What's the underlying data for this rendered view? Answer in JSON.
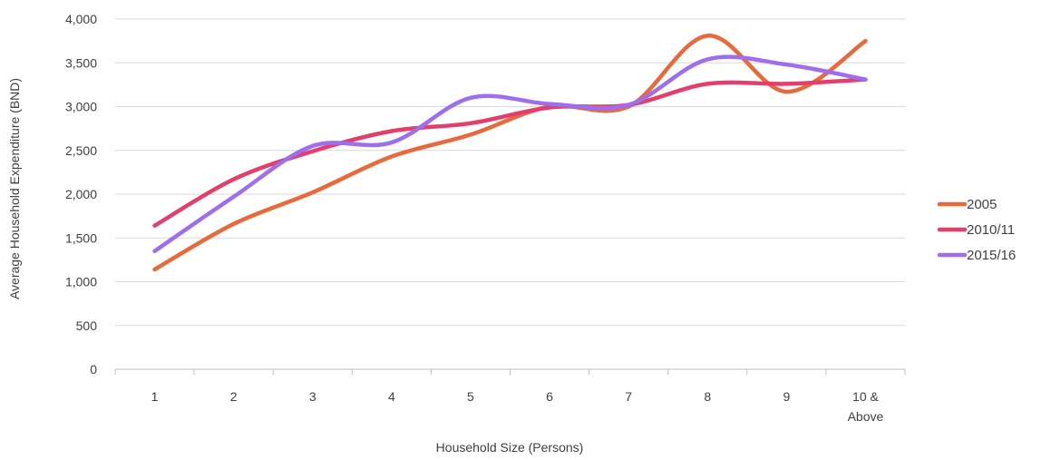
{
  "chart_data": {
    "type": "line",
    "title": "",
    "xlabel": "Household Size (Persons)",
    "ylabel": "Average Household Expenditure (BND)",
    "categories": [
      "1",
      "2",
      "3",
      "4",
      "5",
      "6",
      "7",
      "8",
      "9",
      "10 & Above"
    ],
    "ylim": [
      0,
      4000
    ],
    "yticks": [
      0,
      500,
      1000,
      1500,
      2000,
      2500,
      3000,
      3500,
      4000
    ],
    "ytick_labels": [
      "0",
      "500",
      "1,000",
      "1,500",
      "2,000",
      "2,500",
      "3,000",
      "3,500",
      "4,000"
    ],
    "grid": true,
    "smooth": true,
    "legend_position": "right",
    "series": [
      {
        "name": "2005",
        "color": "#E8693A",
        "values": [
          1140,
          1660,
          2020,
          2430,
          2680,
          3000,
          3000,
          3810,
          3170,
          3750
        ]
      },
      {
        "name": "2010/11",
        "color": "#E43F6B",
        "values": [
          1640,
          2170,
          2490,
          2720,
          2810,
          2990,
          3020,
          3260,
          3260,
          3310
        ]
      },
      {
        "name": "2015/16",
        "color": "#9E6EEE",
        "values": [
          1350,
          1970,
          2550,
          2590,
          3100,
          3030,
          3020,
          3540,
          3480,
          3310
        ]
      }
    ]
  }
}
